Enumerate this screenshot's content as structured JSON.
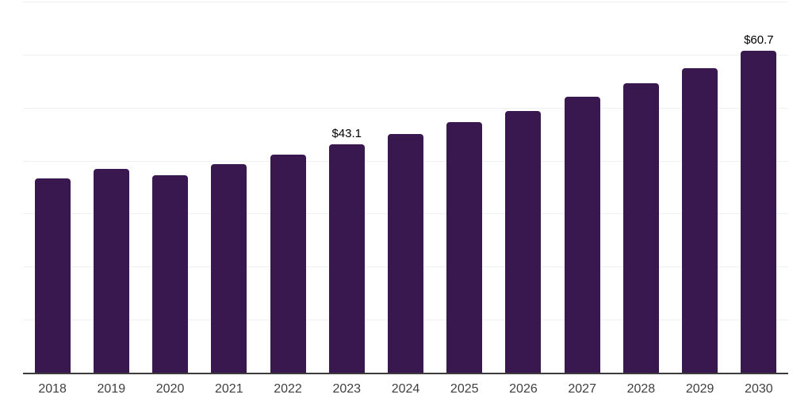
{
  "chart_data": {
    "type": "bar",
    "title": "",
    "xlabel": "",
    "ylabel": "",
    "categories": [
      "2018",
      "2019",
      "2020",
      "2021",
      "2022",
      "2023",
      "2024",
      "2025",
      "2026",
      "2027",
      "2028",
      "2029",
      "2030"
    ],
    "values": [
      36.6,
      38.5,
      37.2,
      39.3,
      41.1,
      43.1,
      45.0,
      47.2,
      49.4,
      52.0,
      54.6,
      57.5,
      60.7
    ],
    "value_labels": [
      "",
      "",
      "",
      "",
      "",
      "$43.1",
      "",
      "",
      "",
      "",
      "",
      "",
      "$60.7"
    ],
    "ylim": [
      0,
      70
    ],
    "gridline_step": 10,
    "grid": true,
    "legend": "none",
    "y_axis_tick_labels": "none"
  },
  "colors": {
    "bar": "#38184e",
    "gridline": "#f0f0f0",
    "axis_line": "#3c3c3c",
    "x_tick_label": "#3f3f3f",
    "value_label": "#000000",
    "background": "#ffffff"
  }
}
